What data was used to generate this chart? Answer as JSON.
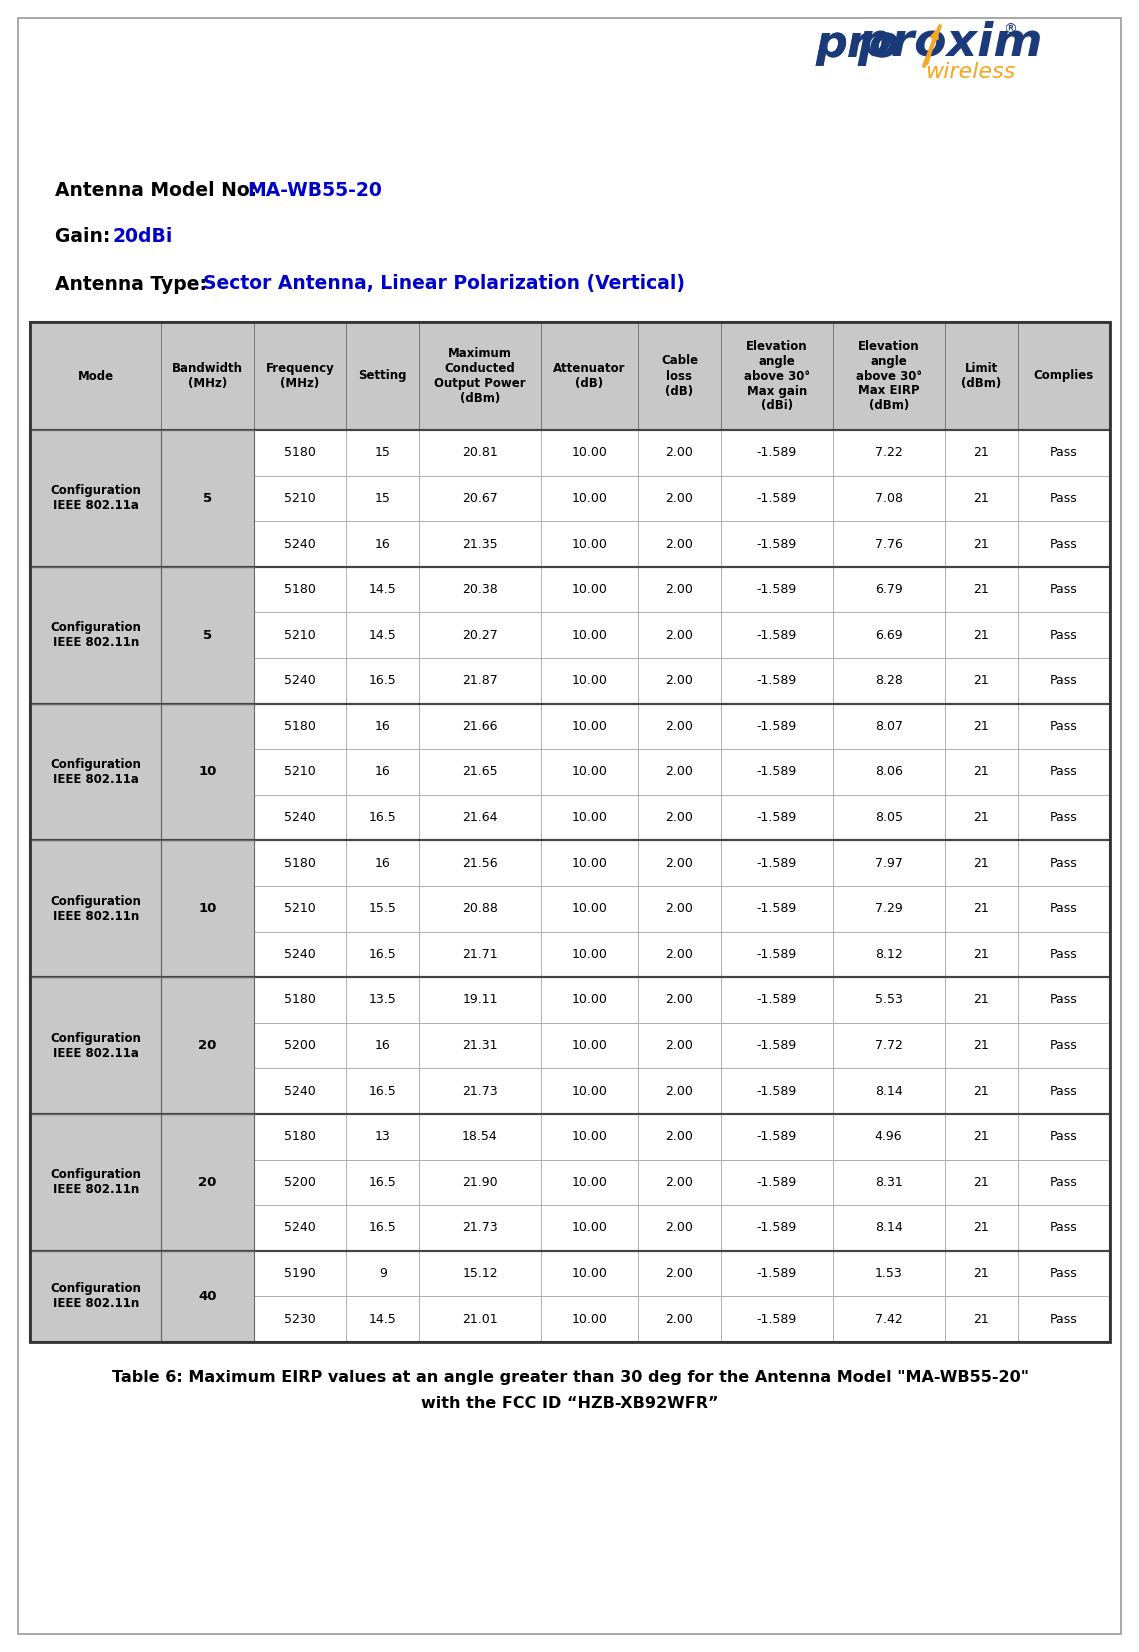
{
  "antenna_model_label": "Antenna Model No: ",
  "antenna_model_value": "MA-WB55-20",
  "gain_label": "Gain: ",
  "gain_value": "20dBi",
  "type_label": "Antenna Type",
  "type_colon": ": ",
  "type_value": "Sector Antenna, Linear Polarization (Vertical)",
  "caption_line1": "Table 6: Maximum EIRP values at an angle greater than 30 deg for the Antenna Model \"MA-WB55-20\"",
  "caption_line2": "with the FCC ID “HZB-XB92WFR”",
  "header": [
    "Mode",
    "Bandwidth\n(MHz)",
    "Frequency\n(MHz)",
    "Setting",
    "Maximum\nConducted\nOutput Power\n(dBm)",
    "Attenuator\n(dB)",
    "Cable\nloss\n(dB)",
    "Elevation\nangle\nabove 30°\nMax gain\n(dBi)",
    "Elevation\nangle\nabove 30°\nMax EIRP\n(dBm)",
    "Limit\n(dBm)",
    "Complies"
  ],
  "groups": [
    {
      "mode_line1": "Configuration",
      "mode_line2": "IEEE 802.11a",
      "bandwidth": "5",
      "rows": [
        [
          "5180",
          "15",
          "20.81",
          "10.00",
          "2.00",
          "-1.589",
          "7.22",
          "21",
          "Pass"
        ],
        [
          "5210",
          "15",
          "20.67",
          "10.00",
          "2.00",
          "-1.589",
          "7.08",
          "21",
          "Pass"
        ],
        [
          "5240",
          "16",
          "21.35",
          "10.00",
          "2.00",
          "-1.589",
          "7.76",
          "21",
          "Pass"
        ]
      ]
    },
    {
      "mode_line1": "Configuration",
      "mode_line2": "IEEE 802.11n",
      "bandwidth": "5",
      "rows": [
        [
          "5180",
          "14.5",
          "20.38",
          "10.00",
          "2.00",
          "-1.589",
          "6.79",
          "21",
          "Pass"
        ],
        [
          "5210",
          "14.5",
          "20.27",
          "10.00",
          "2.00",
          "-1.589",
          "6.69",
          "21",
          "Pass"
        ],
        [
          "5240",
          "16.5",
          "21.87",
          "10.00",
          "2.00",
          "-1.589",
          "8.28",
          "21",
          "Pass"
        ]
      ]
    },
    {
      "mode_line1": "Configuration",
      "mode_line2": "IEEE 802.11a",
      "bandwidth": "10",
      "rows": [
        [
          "5180",
          "16",
          "21.66",
          "10.00",
          "2.00",
          "-1.589",
          "8.07",
          "21",
          "Pass"
        ],
        [
          "5210",
          "16",
          "21.65",
          "10.00",
          "2.00",
          "-1.589",
          "8.06",
          "21",
          "Pass"
        ],
        [
          "5240",
          "16.5",
          "21.64",
          "10.00",
          "2.00",
          "-1.589",
          "8.05",
          "21",
          "Pass"
        ]
      ]
    },
    {
      "mode_line1": "Configuration",
      "mode_line2": "IEEE 802.11n",
      "bandwidth": "10",
      "rows": [
        [
          "5180",
          "16",
          "21.56",
          "10.00",
          "2.00",
          "-1.589",
          "7.97",
          "21",
          "Pass"
        ],
        [
          "5210",
          "15.5",
          "20.88",
          "10.00",
          "2.00",
          "-1.589",
          "7.29",
          "21",
          "Pass"
        ],
        [
          "5240",
          "16.5",
          "21.71",
          "10.00",
          "2.00",
          "-1.589",
          "8.12",
          "21",
          "Pass"
        ]
      ]
    },
    {
      "mode_line1": "Configuration",
      "mode_line2": "IEEE 802.11a",
      "bandwidth": "20",
      "rows": [
        [
          "5180",
          "13.5",
          "19.11",
          "10.00",
          "2.00",
          "-1.589",
          "5.53",
          "21",
          "Pass"
        ],
        [
          "5200",
          "16",
          "21.31",
          "10.00",
          "2.00",
          "-1.589",
          "7.72",
          "21",
          "Pass"
        ],
        [
          "5240",
          "16.5",
          "21.73",
          "10.00",
          "2.00",
          "-1.589",
          "8.14",
          "21",
          "Pass"
        ]
      ]
    },
    {
      "mode_line1": "Configuration",
      "mode_line2": "IEEE 802.11n",
      "bandwidth": "20",
      "rows": [
        [
          "5180",
          "13",
          "18.54",
          "10.00",
          "2.00",
          "-1.589",
          "4.96",
          "21",
          "Pass"
        ],
        [
          "5200",
          "16.5",
          "21.90",
          "10.00",
          "2.00",
          "-1.589",
          "8.31",
          "21",
          "Pass"
        ],
        [
          "5240",
          "16.5",
          "21.73",
          "10.00",
          "2.00",
          "-1.589",
          "8.14",
          "21",
          "Pass"
        ]
      ]
    },
    {
      "mode_line1": "Configuration",
      "mode_line2": "IEEE 802.11n",
      "bandwidth": "40",
      "rows": [
        [
          "5190",
          "9",
          "15.12",
          "10.00",
          "2.00",
          "-1.589",
          "1.53",
          "21",
          "Pass"
        ],
        [
          "5230",
          "14.5",
          "21.01",
          "10.00",
          "2.00",
          "-1.589",
          "7.42",
          "21",
          "Pass"
        ]
      ]
    }
  ],
  "header_bg": "#C8C8C8",
  "proxim_blue": "#1B3A7A",
  "proxim_orange": "#F5A623",
  "blue_text": "#0000CD",
  "col_widths_rel": [
    1.35,
    0.95,
    0.95,
    0.75,
    1.25,
    1.0,
    0.85,
    1.15,
    1.15,
    0.75,
    0.95
  ]
}
